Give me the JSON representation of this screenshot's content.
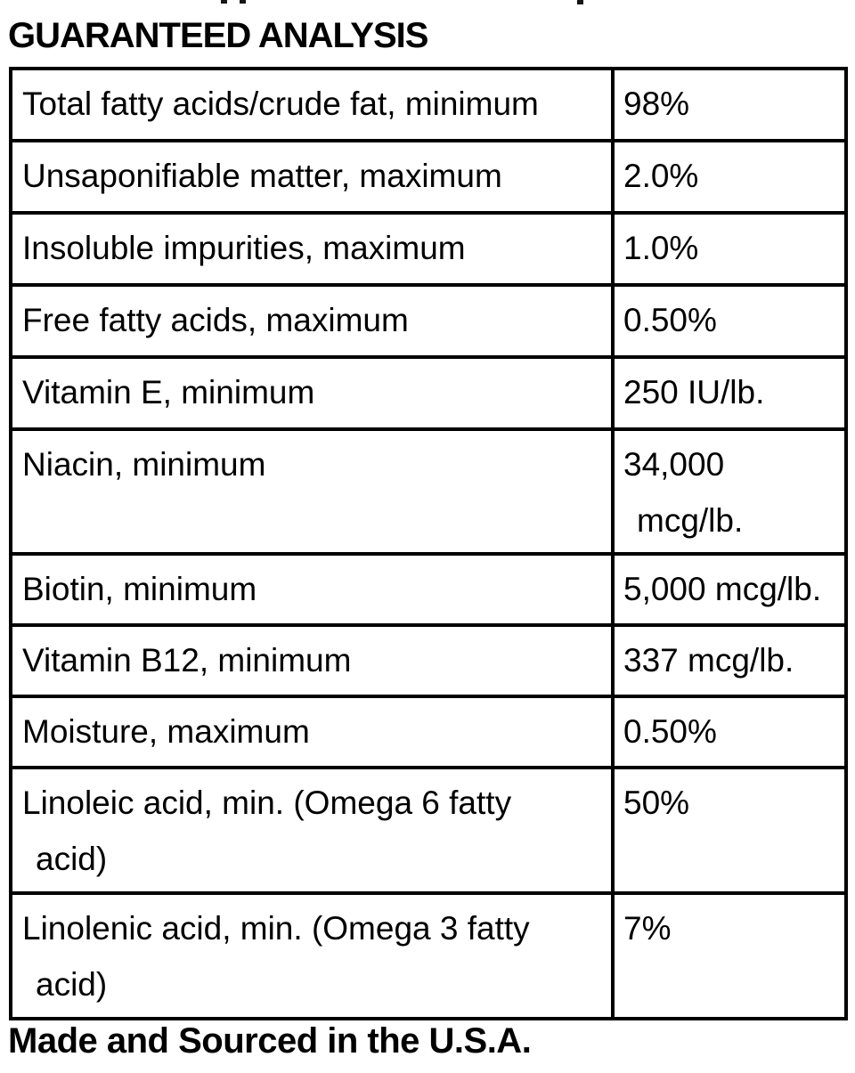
{
  "page": {
    "title": "GUARANTEED ANALYSIS",
    "footer": "Made and Sourced in the U.S.A."
  },
  "table": {
    "rows": [
      {
        "label": "Total fatty acids/crude fat, minimum",
        "value": "98%"
      },
      {
        "label": "Unsaponifiable matter, maximum",
        "value": "2.0%"
      },
      {
        "label": "Insoluble impurities, maximum",
        "value": "1.0%"
      },
      {
        "label": "Free fatty acids, maximum",
        "value": "0.50%"
      },
      {
        "label": "Vitamin E, minimum",
        "value": "250 IU/lb."
      },
      {
        "label": "Niacin, minimum",
        "value": "34,000\nmcg/lb."
      },
      {
        "label": "Biotin, minimum",
        "value": "5,000 mcg/lb."
      },
      {
        "label": "Vitamin B12, minimum",
        "value": "337 mcg/lb."
      },
      {
        "label": "Moisture, maximum",
        "value": "0.50%"
      },
      {
        "label": "Linoleic acid, min. (Omega 6 fatty\nacid)",
        "value": "50%"
      },
      {
        "label": "Linolenic acid, min. (Omega 3 fatty\nacid)",
        "value": "7%"
      }
    ]
  },
  "colors": {
    "text": "#000000",
    "border": "#000000",
    "background": "#ffffff"
  }
}
